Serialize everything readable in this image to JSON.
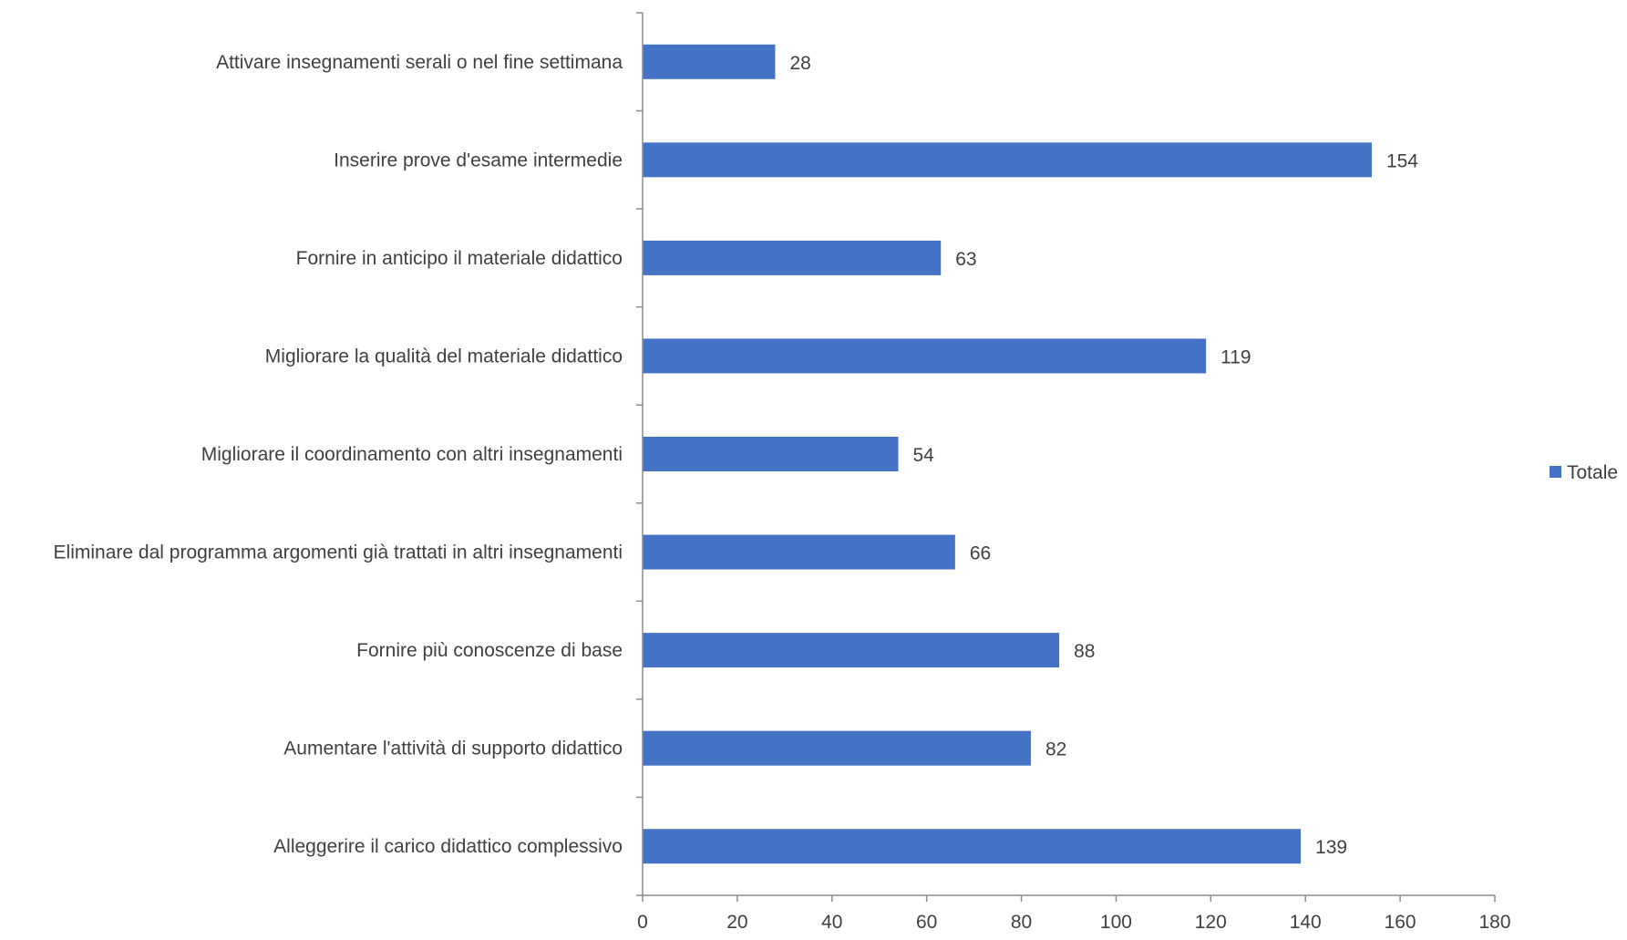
{
  "chart_data": {
    "type": "bar",
    "orientation": "horizontal",
    "categories": [
      "Attivare insegnamenti serali o nel fine settimana",
      "Inserire prove d'esame intermedie",
      "Fornire in anticipo il materiale didattico",
      "Migliorare la qualità del materiale didattico",
      "Migliorare il coordinamento con altri insegnamenti",
      "Eliminare dal programma argomenti già trattati in altri insegnamenti",
      "Fornire più conoscenze di base",
      "Aumentare l'attività di supporto didattico",
      "Alleggerire il carico didattico complessivo"
    ],
    "series": [
      {
        "name": "Totale",
        "values": [
          28,
          154,
          63,
          119,
          54,
          66,
          88,
          82,
          139
        ],
        "color": "#4472C4"
      }
    ],
    "x_ticks": [
      "0",
      "20",
      "40",
      "60",
      "80",
      "100",
      "120",
      "140",
      "160",
      "180"
    ],
    "xlim": [
      0,
      180
    ],
    "grid": false,
    "legend": "right"
  }
}
